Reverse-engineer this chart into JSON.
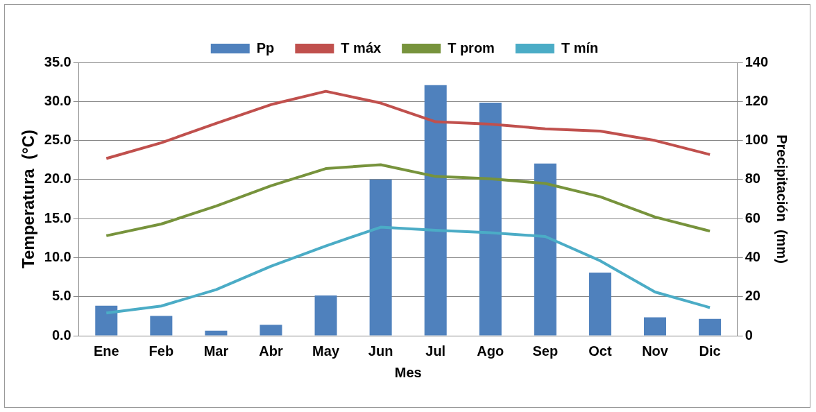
{
  "chart_data": {
    "type": "bar",
    "xlabel": "Mes",
    "ylabel": "Temperatura  (°C)",
    "y2label": "Precipitación  (mm)",
    "categories": [
      "Ene",
      "Feb",
      "Mar",
      "Abr",
      "May",
      "Jun",
      "Jul",
      "Ago",
      "Sep",
      "Oct",
      "Nov",
      "Dic"
    ],
    "series": [
      {
        "name": "Pp",
        "axis": "y2",
        "color": "#4f81bd",
        "values": [
          15.4,
          10.1,
          2.6,
          5.6,
          20.6,
          80,
          128.4,
          119.4,
          88.2,
          32.3,
          9.4,
          8.6
        ]
      },
      {
        "name": "T máx",
        "type": "line",
        "color": "#c0504d",
        "values": [
          22.7,
          24.7,
          27.2,
          29.6,
          31.3,
          29.8,
          27.4,
          27.1,
          26.5,
          26.2,
          25.0,
          23.2
        ]
      },
      {
        "name": "T prom",
        "type": "line",
        "color": "#77933c",
        "values": [
          12.8,
          14.3,
          16.6,
          19.2,
          21.4,
          21.9,
          20.4,
          20.1,
          19.5,
          17.8,
          15.2,
          13.4
        ]
      },
      {
        "name": "T mín",
        "type": "line",
        "color": "#4bacc6",
        "values": [
          2.9,
          3.8,
          5.9,
          8.9,
          11.5,
          13.9,
          13.5,
          13.2,
          12.7,
          9.6,
          5.6,
          3.6
        ]
      }
    ],
    "ylim": [
      0,
      35
    ],
    "yticks": [
      {
        "value": 0,
        "label": "0.0"
      },
      {
        "value": 5,
        "label": "5.0"
      },
      {
        "value": 10,
        "label": "10.0"
      },
      {
        "value": 15,
        "label": "15.0"
      },
      {
        "value": 20,
        "label": "20.0"
      },
      {
        "value": 25,
        "label": "25.0"
      },
      {
        "value": 30,
        "label": "30.0"
      },
      {
        "value": 35,
        "label": "35.0"
      }
    ],
    "y2lim": [
      0,
      140
    ],
    "y2ticks": [
      0,
      20,
      40,
      60,
      80,
      100,
      120,
      140
    ],
    "grid": "y",
    "legend": "top",
    "marker": "none",
    "line_style": "solid"
  }
}
